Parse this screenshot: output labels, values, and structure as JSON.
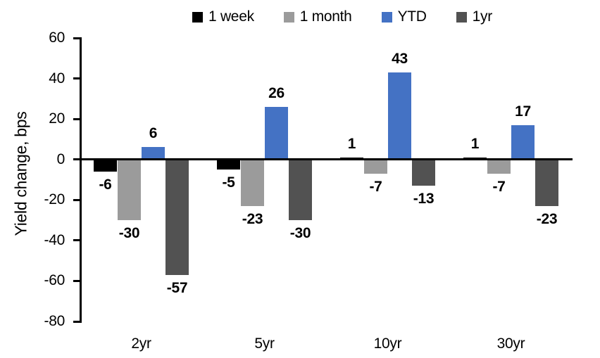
{
  "chart_data": {
    "type": "bar",
    "title": "",
    "categories": [
      "2yr",
      "5yr",
      "10yr",
      "30yr"
    ],
    "series": [
      {
        "name": "1 week",
        "color": "#000000",
        "values": [
          -6,
          -5,
          1,
          1
        ]
      },
      {
        "name": "1 month",
        "color": "#9B9B9B",
        "values": [
          -30,
          -23,
          -7,
          -7
        ]
      },
      {
        "name": "YTD",
        "color": "#4472C4",
        "values": [
          6,
          26,
          43,
          17
        ]
      },
      {
        "name": "1yr",
        "color": "#525252",
        "values": [
          -57,
          -30,
          -13,
          -23
        ]
      }
    ],
    "xlabel": "",
    "ylabel": "Yield change, bps",
    "ylim": [
      -80,
      60
    ],
    "yticks": [
      60,
      40,
      20,
      0,
      -20,
      -40,
      -60,
      -80
    ],
    "legend_position": "top",
    "grid": false,
    "data_labels": true,
    "axis_color": "#000000",
    "background": "#FFFFFF"
  }
}
